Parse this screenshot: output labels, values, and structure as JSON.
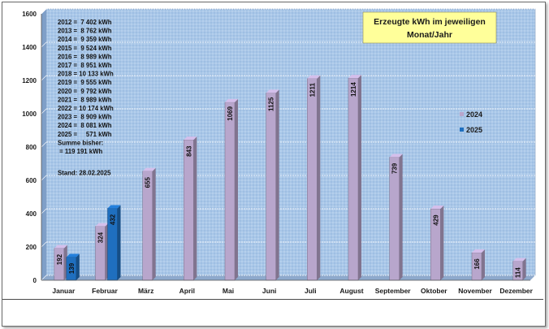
{
  "chart_data": {
    "type": "bar",
    "title_lines": [
      "Erzeugte kWh im jeweiligen",
      "Monat/Jahr"
    ],
    "categories": [
      "Januar",
      "Februar",
      "März",
      "April",
      "Mai",
      "Juni",
      "Juli",
      "August",
      "September",
      "Oktober",
      "November",
      "Dezember"
    ],
    "series": [
      {
        "name": "2024",
        "color": "#b8a6cc",
        "values": [
          192,
          324,
          655,
          843,
          1069,
          1125,
          1211,
          1214,
          739,
          429,
          166,
          114
        ]
      },
      {
        "name": "2025",
        "color": "#1f6fbf",
        "values": [
          139,
          432,
          null,
          null,
          null,
          null,
          null,
          null,
          null,
          null,
          null,
          null
        ]
      }
    ],
    "ylim": [
      0,
      1600
    ],
    "yticks": [
      0,
      200,
      400,
      600,
      800,
      1000,
      1200,
      1400,
      1600
    ],
    "grid": true,
    "legend_position": "right",
    "annotation_lines": [
      "2012 =  7 402 kWh",
      "2013 =  8 762 kWh",
      "2014 =  9 359 kWh",
      "2015 =  9 524 kWh",
      "2016 =  8 989 kWh",
      "2017 =  8 951 kWh",
      "2018 = 10 133 kWh",
      "2019 =  9 555 kWh",
      "2020 =  9 792 kWh",
      "2021 =  8 989 kWh",
      "2022 = 10 174 kWh",
      "2023 =  8 909 kWh",
      "2024 =  8 081 kWh",
      "2025 =     571 kWh",
      "Summe bisher:",
      " = 119 191 kWh"
    ],
    "stand": "Stand: 28.02.2025",
    "colors": {
      "plot_background": "#a9c7e8",
      "title_box": "#ffff9a",
      "frame": "#6a6a6a"
    }
  }
}
